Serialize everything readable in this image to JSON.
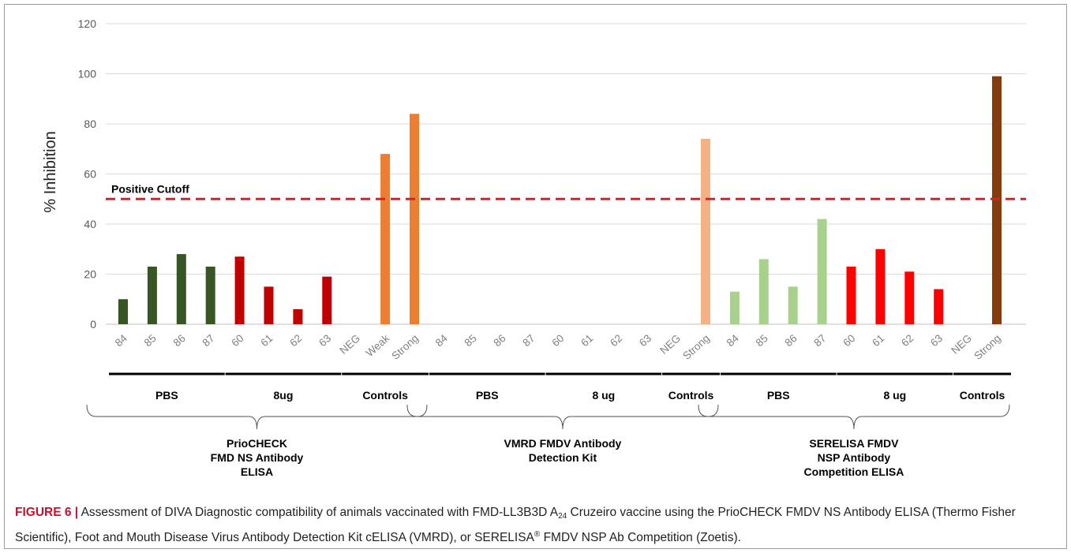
{
  "chart_data": {
    "type": "bar",
    "ylabel": "% Inhibition",
    "ylim": [
      0,
      120
    ],
    "yticks": [
      0,
      20,
      40,
      60,
      80,
      100,
      120
    ],
    "grid": true,
    "cutoff": {
      "label": "Positive Cutoff",
      "value": 50,
      "color": "#e31c24"
    },
    "kits": [
      {
        "name_lines": [
          "PrioCHECK",
          "FMD NS Antibody",
          "ELISA"
        ],
        "groups": [
          {
            "label": "PBS",
            "color": "#375623",
            "categories": [
              "84",
              "85",
              "86",
              "87"
            ],
            "values": [
              10,
              23,
              28,
              23
            ]
          },
          {
            "label": "8ug",
            "color": "#c00000",
            "categories": [
              "60",
              "61",
              "62",
              "63"
            ],
            "values": [
              27,
              15,
              6,
              19
            ]
          },
          {
            "label": "Controls",
            "color": "#ed7d31",
            "categories": [
              "NEG",
              "Weak",
              "Strong"
            ],
            "values": [
              0,
              68,
              84
            ]
          }
        ]
      },
      {
        "name_lines": [
          "VMRD FMDV Antibody",
          "Detection Kit"
        ],
        "groups": [
          {
            "label": "PBS",
            "color": "#999999",
            "categories": [
              "84",
              "85",
              "86",
              "87"
            ],
            "values": [
              0,
              0,
              0,
              0
            ]
          },
          {
            "label": "8 ug",
            "color": "#999999",
            "categories": [
              "60",
              "61",
              "62",
              "63"
            ],
            "values": [
              0,
              0,
              0,
              0
            ]
          },
          {
            "label": "Controls",
            "color": "#f4b183",
            "categories": [
              "NEG",
              "Strong"
            ],
            "values": [
              0,
              74
            ]
          }
        ]
      },
      {
        "name_lines": [
          "SERELISA FMDV",
          "NSP Antibody",
          "Competition ELISA"
        ],
        "groups": [
          {
            "label": "PBS",
            "color": "#a9d18e",
            "categories": [
              "84",
              "85",
              "86",
              "87"
            ],
            "values": [
              13,
              26,
              15,
              42
            ]
          },
          {
            "label": "8 ug",
            "color": "#ff0000",
            "categories": [
              "60",
              "61",
              "62",
              "63"
            ],
            "values": [
              23,
              30,
              21,
              14
            ]
          },
          {
            "label": "Controls",
            "color": "#843c0c",
            "categories": [
              "NEG",
              "Strong"
            ],
            "values": [
              0,
              99
            ]
          }
        ]
      }
    ]
  },
  "caption": {
    "label": "FIGURE 6",
    "separator": "|",
    "pre": "Assessment of DIVA Diagnostic compatibility of animals vaccinated with FMD-LL3B3D A",
    "sub": "24",
    "mid": " Cruzeiro vaccine using the PrioCHECK FMDV NS Antibody ELISA (Thermo Fisher Scientific), Foot and Mouth Disease Virus Antibody Detection Kit cELISA (VMRD), or SERELISA",
    "sup": "®",
    "post": " FMDV NSP Ab Competition (Zoetis)."
  }
}
